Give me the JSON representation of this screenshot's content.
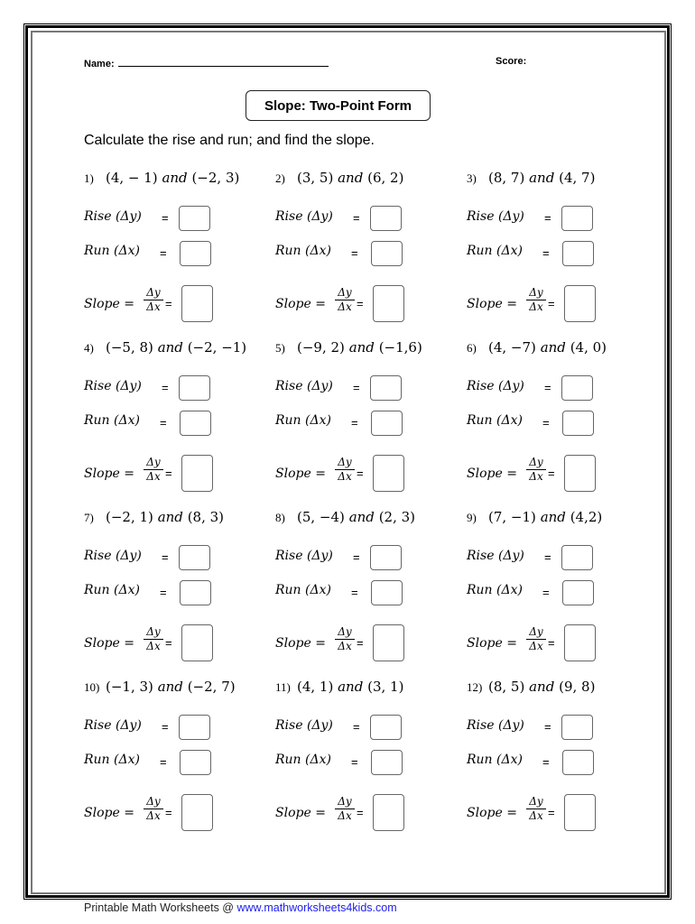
{
  "header": {
    "name_label": "Name:",
    "score_label": "Score:",
    "title": "Slope: Two-Point Form",
    "instructions": "Calculate the rise and run; and find the slope."
  },
  "labels": {
    "rise": "Rise (Δy)",
    "run": "Run (Δx)",
    "slope": "Slope =",
    "numerator": "Δy",
    "denominator": "Δx",
    "equals": "=",
    "and": "and"
  },
  "problems": [
    {
      "num": "1)",
      "p1": "(4, − 1)",
      "p2": "(−2, 3)"
    },
    {
      "num": "2)",
      "p1": "(3, 5)",
      "p2": "(6, 2)"
    },
    {
      "num": "3)",
      "p1": "(8, 7)",
      "p2": "(4, 7)"
    },
    {
      "num": "4)",
      "p1": "(−5, 8)",
      "p2": "(−2, −1)"
    },
    {
      "num": "5)",
      "p1": "(−9, 2)",
      "p2": "(−1,6)"
    },
    {
      "num": "6)",
      "p1": "(4, −7)",
      "p2": "(4, 0)"
    },
    {
      "num": "7)",
      "p1": "(−2, 1)",
      "p2": "(8, 3)"
    },
    {
      "num": "8)",
      "p1": "(5, −4)",
      "p2": "(2, 3)"
    },
    {
      "num": "9)",
      "p1": "(7, −1)",
      "p2": "(4,2)"
    },
    {
      "num": "10)",
      "p1": "(−1, 3)",
      "p2": "(−2, 7)"
    },
    {
      "num": "11)",
      "p1": "(4, 1)",
      "p2": "(3, 1)"
    },
    {
      "num": "12)",
      "p1": "(8, 5)",
      "p2": "(9, 8)"
    }
  ],
  "footer": {
    "text": "Printable Math Worksheets @ ",
    "link": "www.mathworksheets4kids.com",
    "link_color": "#2020ee"
  }
}
